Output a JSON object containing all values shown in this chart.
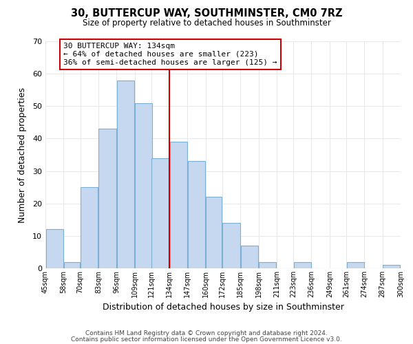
{
  "title": "30, BUTTERCUP WAY, SOUTHMINSTER, CM0 7RZ",
  "subtitle": "Size of property relative to detached houses in Southminster",
  "xlabel": "Distribution of detached houses by size in Southminster",
  "ylabel": "Number of detached properties",
  "bar_left_edges": [
    45,
    58,
    70,
    83,
    96,
    109,
    121,
    134,
    147,
    160,
    172,
    185,
    198,
    211,
    223,
    236,
    249,
    261,
    274,
    287
  ],
  "bar_widths": [
    13,
    12,
    13,
    13,
    13,
    13,
    13,
    13,
    13,
    12,
    13,
    13,
    13,
    12,
    13,
    13,
    13,
    13,
    13,
    13
  ],
  "bar_heights": [
    12,
    2,
    25,
    43,
    58,
    51,
    34,
    39,
    33,
    22,
    14,
    7,
    2,
    0,
    2,
    0,
    0,
    2,
    0,
    1
  ],
  "bar_color": "#c5d8f0",
  "bar_edge_color": "#7bafd4",
  "reference_line_x": 134,
  "reference_line_color": "#cc0000",
  "ylim": [
    0,
    70
  ],
  "yticks": [
    0,
    10,
    20,
    30,
    40,
    50,
    60,
    70
  ],
  "x_tick_labels": [
    "45sqm",
    "58sqm",
    "70sqm",
    "83sqm",
    "96sqm",
    "109sqm",
    "121sqm",
    "134sqm",
    "147sqm",
    "160sqm",
    "172sqm",
    "185sqm",
    "198sqm",
    "211sqm",
    "223sqm",
    "236sqm",
    "249sqm",
    "261sqm",
    "274sqm",
    "287sqm",
    "300sqm"
  ],
  "x_tick_positions": [
    45,
    58,
    70,
    83,
    96,
    109,
    121,
    134,
    147,
    160,
    172,
    185,
    198,
    211,
    223,
    236,
    249,
    261,
    274,
    287,
    300
  ],
  "annotation_title": "30 BUTTERCUP WAY: 134sqm",
  "annotation_line1": "← 64% of detached houses are smaller (223)",
  "annotation_line2": "36% of semi-detached houses are larger (125) →",
  "annotation_box_color": "#ffffff",
  "annotation_box_edge_color": "#cc0000",
  "footer_line1": "Contains HM Land Registry data © Crown copyright and database right 2024.",
  "footer_line2": "Contains public sector information licensed under the Open Government Licence v3.0.",
  "background_color": "#ffffff",
  "grid_color": "#e8e8e8"
}
